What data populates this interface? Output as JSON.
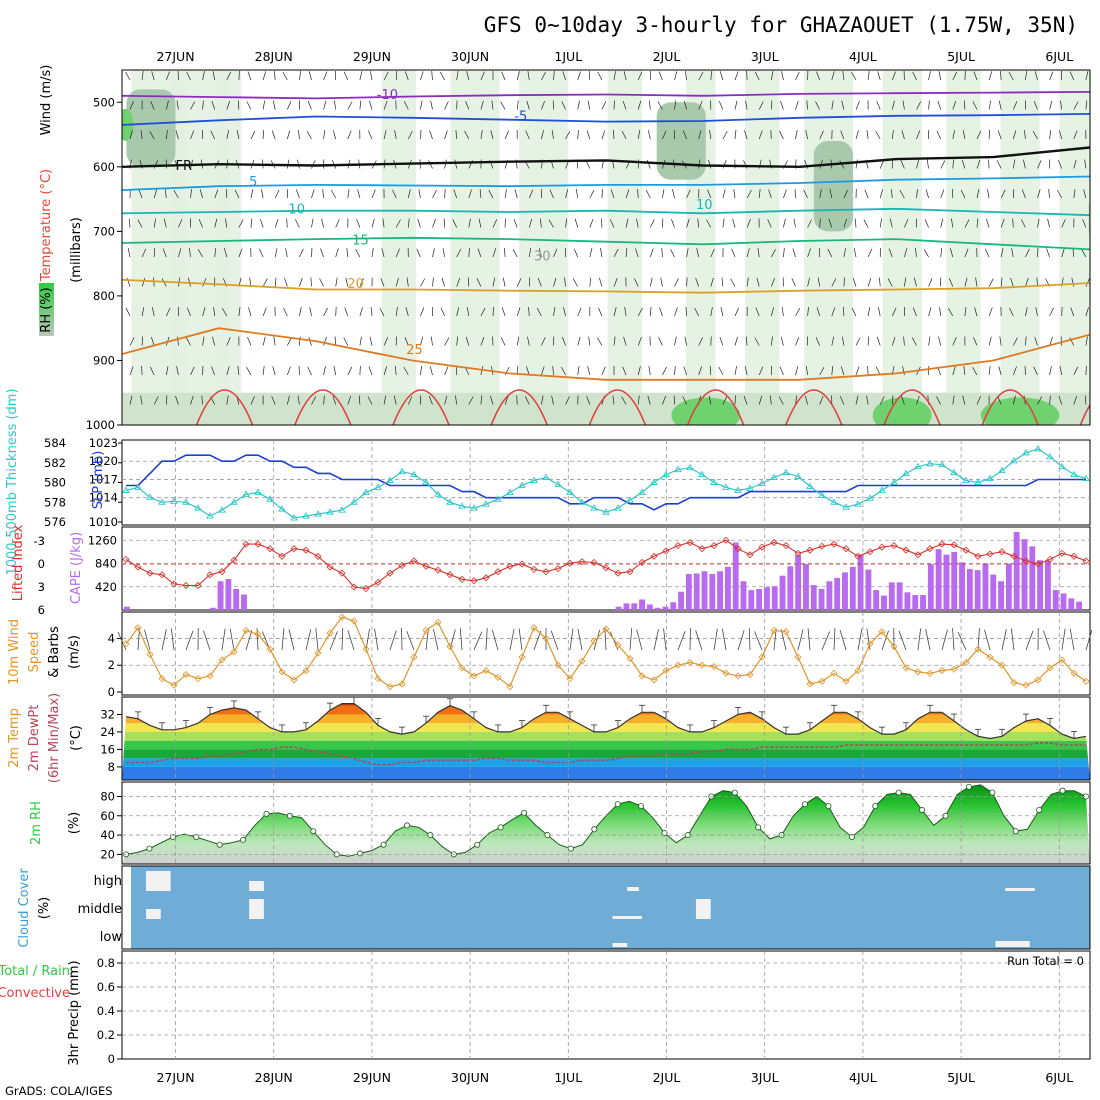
{
  "title": "GFS 0~10day 3-hourly for GHAZAOUET (1.75W, 35N)",
  "credit": "GrADS: COLA/IGES",
  "dates": [
    "27JUN",
    "28JUN",
    "29JUN",
    "30JUN",
    "1JUL",
    "2JUL",
    "3JUL",
    "4JUL",
    "5JUL",
    "6JUL"
  ],
  "colors": {
    "cloud_bg": "#6fadd6",
    "rh_green": "#2ecc40",
    "slp": "#1c3fcf",
    "thick": "#2fc6c8",
    "li": "#d9302a",
    "cape": "#b86af0",
    "wind": "#e0962a",
    "dewpt": "#b0485a"
  },
  "chart_data": [
    {
      "type": "heatmap",
      "panel": "cross-section",
      "ylabel_rh": "RH (%)",
      "ylabel_temp": "Temperature (°C)",
      "ylabel_wind": "Wind (m/s)",
      "ylabel_levels": "(millibars)",
      "y_ticks": [
        "500",
        "600",
        "700",
        "800",
        "900",
        "1000"
      ],
      "y_range": [
        450,
        1000
      ],
      "contour_labels": [
        "-10",
        "-5",
        "FR",
        "5",
        "10",
        "15",
        "20",
        "25",
        "30",
        "10"
      ],
      "isotherms": [
        {
          "label": "-10",
          "levels": [
            490,
            492,
            494,
            491,
            489,
            488,
            490,
            487,
            486,
            485,
            484
          ]
        },
        {
          "label": "-5",
          "levels": [
            535,
            528,
            522,
            524,
            527,
            530,
            529,
            524,
            521,
            520,
            518
          ]
        },
        {
          "label": "FR",
          "levels": [
            600,
            596,
            598,
            595,
            592,
            590,
            598,
            600,
            588,
            585,
            570
          ]
        },
        {
          "label": "5",
          "levels": [
            636,
            630,
            628,
            629,
            630,
            628,
            628,
            625,
            620,
            618,
            615
          ]
        },
        {
          "label": "10",
          "levels": [
            672,
            670,
            668,
            668,
            670,
            668,
            672,
            668,
            665,
            670,
            675
          ]
        },
        {
          "label": "15",
          "levels": [
            718,
            715,
            712,
            710,
            712,
            716,
            720,
            715,
            712,
            720,
            728
          ]
        },
        {
          "label": "20",
          "levels": [
            775,
            782,
            790,
            790,
            792,
            793,
            795,
            792,
            790,
            788,
            780
          ]
        },
        {
          "label": "25",
          "levels": [
            890,
            850,
            870,
            900,
            920,
            930,
            930,
            930,
            920,
            900,
            860
          ]
        }
      ]
    },
    {
      "type": "line",
      "panel": "slp-thickness",
      "ylabel_left": "1000-500mb Thickness (dm)",
      "ylabel_right": "SLP (mb)",
      "left_ticks": [
        "584",
        "582",
        "580",
        "578",
        "576"
      ],
      "right_ticks": [
        "1023",
        "1020",
        "1017",
        "1014",
        "1010"
      ],
      "series": [
        {
          "name": "SLP",
          "axis": "right",
          "values": [
            1016,
            1016,
            1018,
            1020,
            1020,
            1021,
            1021,
            1021,
            1020,
            1020,
            1021,
            1021,
            1020,
            1020,
            1019,
            1019,
            1018,
            1018,
            1017,
            1017,
            1017,
            1017,
            1016,
            1016,
            1016,
            1016,
            1016,
            1016,
            1015,
            1015,
            1014,
            1014,
            1014,
            1014,
            1014,
            1014,
            1014,
            1013,
            1013,
            1014,
            1014,
            1014,
            1013,
            1013,
            1012,
            1013,
            1013,
            1014,
            1014,
            1014,
            1014,
            1014,
            1015,
            1015,
            1015,
            1015,
            1015,
            1015,
            1015,
            1015,
            1015,
            1016,
            1016,
            1016,
            1016,
            1016,
            1016,
            1016,
            1016,
            1016,
            1016,
            1016,
            1016,
            1016,
            1016,
            1016,
            1017,
            1017,
            1017,
            1017,
            1017
          ]
        },
        {
          "name": "Thickness",
          "axis": "left",
          "values": [
            579.2,
            579.5,
            578.5,
            578.0,
            578.1,
            578.0,
            577.4,
            576.6,
            577.2,
            578.0,
            578.8,
            579.0,
            578.3,
            577.3,
            576.4,
            576.6,
            576.8,
            577.0,
            577.2,
            578.0,
            579.0,
            579.5,
            580.2,
            581.1,
            580.8,
            580.0,
            578.8,
            578.0,
            577.6,
            577.4,
            577.8,
            578.3,
            579.0,
            579.7,
            580.2,
            580.5,
            579.8,
            579.0,
            578.0,
            577.4,
            577.0,
            577.4,
            578.2,
            579.0,
            580.0,
            580.8,
            581.3,
            581.5,
            580.8,
            580.0,
            579.5,
            579.2,
            579.4,
            579.9,
            580.5,
            581.0,
            580.6,
            579.6,
            578.7,
            578.0,
            577.5,
            577.8,
            578.4,
            579.2,
            580.0,
            580.9,
            581.6,
            581.9,
            581.8,
            581.0,
            580.2,
            580.0,
            580.4,
            581.2,
            582.2,
            583.0,
            583.4,
            582.6,
            581.6,
            580.8,
            580.4
          ]
        }
      ]
    },
    {
      "type": "bar",
      "panel": "cape-lifted-index",
      "ylabel_left": "Lifted Index",
      "ylabel_right": "CAPE (J/kg)",
      "li_ticks": [
        "-3",
        "0",
        "3",
        "6"
      ],
      "cape_ticks": [
        "1260",
        "840",
        "420"
      ],
      "series": [
        {
          "name": "CAPE",
          "values": [
            60,
            0,
            0,
            0,
            0,
            0,
            0,
            0,
            0,
            0,
            0,
            40,
            520,
            560,
            380,
            280,
            0,
            0,
            0,
            0,
            0,
            0,
            0,
            0,
            0,
            0,
            0,
            0,
            0,
            0,
            0,
            0,
            0,
            0,
            0,
            0,
            0,
            0,
            0,
            0,
            0,
            0,
            0,
            0,
            0,
            0,
            0,
            0,
            0,
            0,
            0,
            0,
            0,
            0,
            0,
            0,
            0,
            0,
            0,
            0,
            0,
            0,
            0,
            60,
            120,
            120,
            190,
            100,
            40,
            60,
            140,
            330,
            650,
            660,
            700,
            650,
            700,
            780,
            1220,
            520,
            360,
            380,
            410,
            430,
            620,
            790,
            1000,
            830,
            450,
            380,
            520,
            580,
            680,
            780,
            1000,
            730,
            360,
            260,
            500,
            500,
            320,
            270,
            270,
            830,
            1100,
            1000,
            1050,
            860,
            740,
            720,
            840,
            640,
            520,
            840,
            1410,
            1280,
            1150,
            900,
            890,
            360,
            300,
            210,
            150
          ]
        },
        {
          "name": "Lifted Index",
          "values": [
            -0.6,
            0.4,
            1.2,
            1.4,
            2.6,
            2.8,
            2.8,
            1.4,
            1.0,
            -0.5,
            -2.6,
            -2.6,
            -2.0,
            -1.0,
            -2.0,
            -1.8,
            -1.0,
            0.4,
            1.2,
            3.0,
            3.2,
            2.4,
            1.2,
            0.2,
            -0.4,
            0.3,
            0.8,
            1.4,
            2.0,
            2.2,
            1.8,
            1.0,
            0.3,
            0.0,
            0.7,
            1.0,
            0.6,
            -0.1,
            -0.3,
            -0.2,
            0.5,
            1.2,
            1.0,
            -0.2,
            -1.0,
            -1.7,
            -2.4,
            -2.8,
            -2.0,
            -2.4,
            -3.1,
            -2.0,
            -1.2,
            -2.2,
            -2.8,
            -2.4,
            -1.4,
            -1.8,
            -2.3,
            -2.6,
            -2.0,
            -1.0,
            -1.6,
            -2.2,
            -2.4,
            -1.8,
            -1.2,
            -2.0,
            -2.6,
            -2.5,
            -1.8,
            -1.0,
            -1.3,
            -1.6,
            -1.0,
            -0.4,
            0.0,
            -0.6,
            -1.4,
            -1.0,
            -0.4
          ]
        }
      ]
    },
    {
      "type": "line",
      "panel": "10m-wind",
      "ylabel": "10m Wind Speed & Barbs (m/s)",
      "ylabel_1": "10m Wind",
      "ylabel_2": "Speed",
      "ylabel_3": "& Barbs",
      "ylabel_4": "(m/s)",
      "y_ticks": [
        "4",
        "2",
        "0"
      ],
      "ylim": [
        0,
        5.6
      ],
      "series": [
        {
          "name": "Speed",
          "values": [
            3.6,
            4.8,
            2.8,
            1.0,
            0.5,
            1.3,
            1.0,
            1.2,
            2.4,
            3.0,
            4.6,
            4.3,
            3.2,
            1.5,
            0.9,
            1.6,
            2.9,
            4.4,
            5.6,
            5.3,
            3.2,
            1.0,
            0.4,
            0.6,
            2.6,
            4.6,
            5.2,
            3.4,
            1.8,
            1.2,
            1.6,
            1.1,
            0.4,
            2.6,
            4.8,
            4.0,
            2.0,
            1.0,
            2.3,
            3.8,
            4.7,
            3.5,
            2.5,
            1.2,
            0.9,
            1.6,
            2.0,
            2.2,
            2.0,
            1.9,
            1.4,
            1.2,
            1.3,
            2.6,
            4.6,
            4.5,
            2.6,
            0.6,
            0.8,
            1.4,
            0.8,
            1.6,
            3.6,
            4.5,
            3.4,
            1.8,
            1.5,
            1.4,
            1.6,
            1.7,
            2.2,
            3.2,
            2.6,
            2.0,
            0.7,
            0.5,
            0.9,
            1.8,
            2.4,
            1.4,
            0.8
          ]
        }
      ]
    },
    {
      "type": "area",
      "panel": "2m-temp",
      "ylabel_1": "2m Temp",
      "ylabel_2": "2m DewPt",
      "ylabel_3": "(6hr Min/Max)",
      "ylabel_unit": "(°C)",
      "y_ticks": [
        "32",
        "24",
        "16",
        "8"
      ],
      "ylim": [
        2,
        40
      ],
      "series": [
        {
          "name": "2m Temp",
          "values": [
            31,
            30,
            27,
            25,
            25,
            26,
            28,
            32,
            34,
            35,
            34,
            30,
            26,
            24,
            24,
            25,
            29,
            34,
            37,
            37,
            33,
            27,
            24,
            23,
            24,
            28,
            33,
            36,
            34,
            30,
            26,
            24,
            24,
            26,
            30,
            33,
            33,
            30,
            27,
            24,
            24,
            26,
            30,
            33,
            33,
            30,
            26,
            24,
            24,
            26,
            29,
            32,
            33,
            30,
            26,
            23,
            23,
            25,
            29,
            33,
            33,
            30,
            26,
            23,
            23,
            25,
            30,
            33,
            33,
            29,
            25,
            22,
            21,
            22,
            26,
            29,
            30,
            27,
            23,
            21,
            22
          ]
        },
        {
          "name": "2m DewPt",
          "values": [
            10,
            10,
            10,
            11,
            12,
            12,
            12,
            13,
            13,
            14,
            15,
            16,
            16,
            17,
            17,
            16,
            15,
            14,
            13,
            12,
            10,
            9,
            9,
            10,
            10,
            11,
            11,
            11,
            11,
            11,
            12,
            12,
            11,
            11,
            11,
            10,
            10,
            10,
            11,
            11,
            11,
            12,
            13,
            13,
            13,
            14,
            14,
            14,
            15,
            15,
            16,
            16,
            16,
            17,
            17,
            17,
            17,
            17,
            17,
            17,
            18,
            18,
            18,
            18,
            18,
            18,
            18,
            18,
            18,
            18,
            18,
            18,
            18,
            18,
            18,
            18,
            19,
            19,
            18,
            18,
            18
          ]
        }
      ]
    },
    {
      "type": "area",
      "panel": "2m-rh",
      "ylabel": "2m RH",
      "ylabel_unit": "(%)",
      "y_ticks": [
        "80",
        "60",
        "40",
        "20"
      ],
      "ylim": [
        10,
        95
      ],
      "series": [
        {
          "name": "2m RH",
          "values": [
            20,
            22,
            26,
            32,
            38,
            41,
            38,
            34,
            30,
            32,
            35,
            50,
            62,
            63,
            60,
            58,
            44,
            30,
            20,
            18,
            21,
            24,
            30,
            44,
            50,
            48,
            40,
            28,
            20,
            22,
            30,
            42,
            48,
            56,
            63,
            50,
            40,
            30,
            26,
            30,
            46,
            60,
            72,
            75,
            70,
            58,
            42,
            32,
            40,
            60,
            80,
            86,
            84,
            70,
            48,
            36,
            40,
            60,
            72,
            80,
            70,
            48,
            38,
            48,
            70,
            82,
            84,
            82,
            66,
            50,
            60,
            82,
            90,
            92,
            84,
            60,
            44,
            46,
            66,
            82,
            86,
            86,
            80
          ]
        }
      ]
    },
    {
      "type": "heatmap",
      "panel": "cloud-cover",
      "ylabel": "Cloud Cover (%)",
      "ylabel_1": "Cloud Cover",
      "ylabel_unit": "(%)",
      "y_ticks": [
        "high",
        "middle",
        "low"
      ],
      "patches": [
        {
          "day": 0.2,
          "width": 0.25,
          "level": "high",
          "frac": 1.0
        },
        {
          "day": 0.2,
          "width": 0.15,
          "level": "middle",
          "frac": 0.5
        },
        {
          "day": 1.25,
          "width": 0.15,
          "level": "high",
          "frac": 0.5
        },
        {
          "day": 1.25,
          "width": 0.15,
          "level": "middle",
          "frac": 1.0
        },
        {
          "day": 5.1,
          "width": 0.12,
          "level": "high",
          "frac": 0.2
        },
        {
          "day": 4.95,
          "width": 0.3,
          "level": "middle",
          "frac": 0.15
        },
        {
          "day": 4.95,
          "width": 0.15,
          "level": "low",
          "frac": 0.2
        },
        {
          "day": 5.8,
          "width": 0.15,
          "level": "middle",
          "frac": 1.0
        },
        {
          "day": 8.95,
          "width": 0.3,
          "level": "high",
          "frac": 0.15
        },
        {
          "day": 8.85,
          "width": 0.35,
          "level": "low",
          "frac": 0.3
        },
        {
          "day": 9.95,
          "width": 0.15,
          "level": "high",
          "frac": 1.0
        }
      ]
    },
    {
      "type": "bar",
      "panel": "3hr-precip",
      "ylabel": "3hr Precip (mm)",
      "ylabel_1": "3hr Precip (mm)",
      "ylabel_2": "Total / Rain",
      "ylabel_3": "Convective",
      "y_ticks": [
        "0.8",
        "0.6",
        "0.4",
        "0.2",
        "0"
      ],
      "ylim": [
        0,
        0.9
      ],
      "run_total_label": "Run Total = 0",
      "values": []
    }
  ]
}
